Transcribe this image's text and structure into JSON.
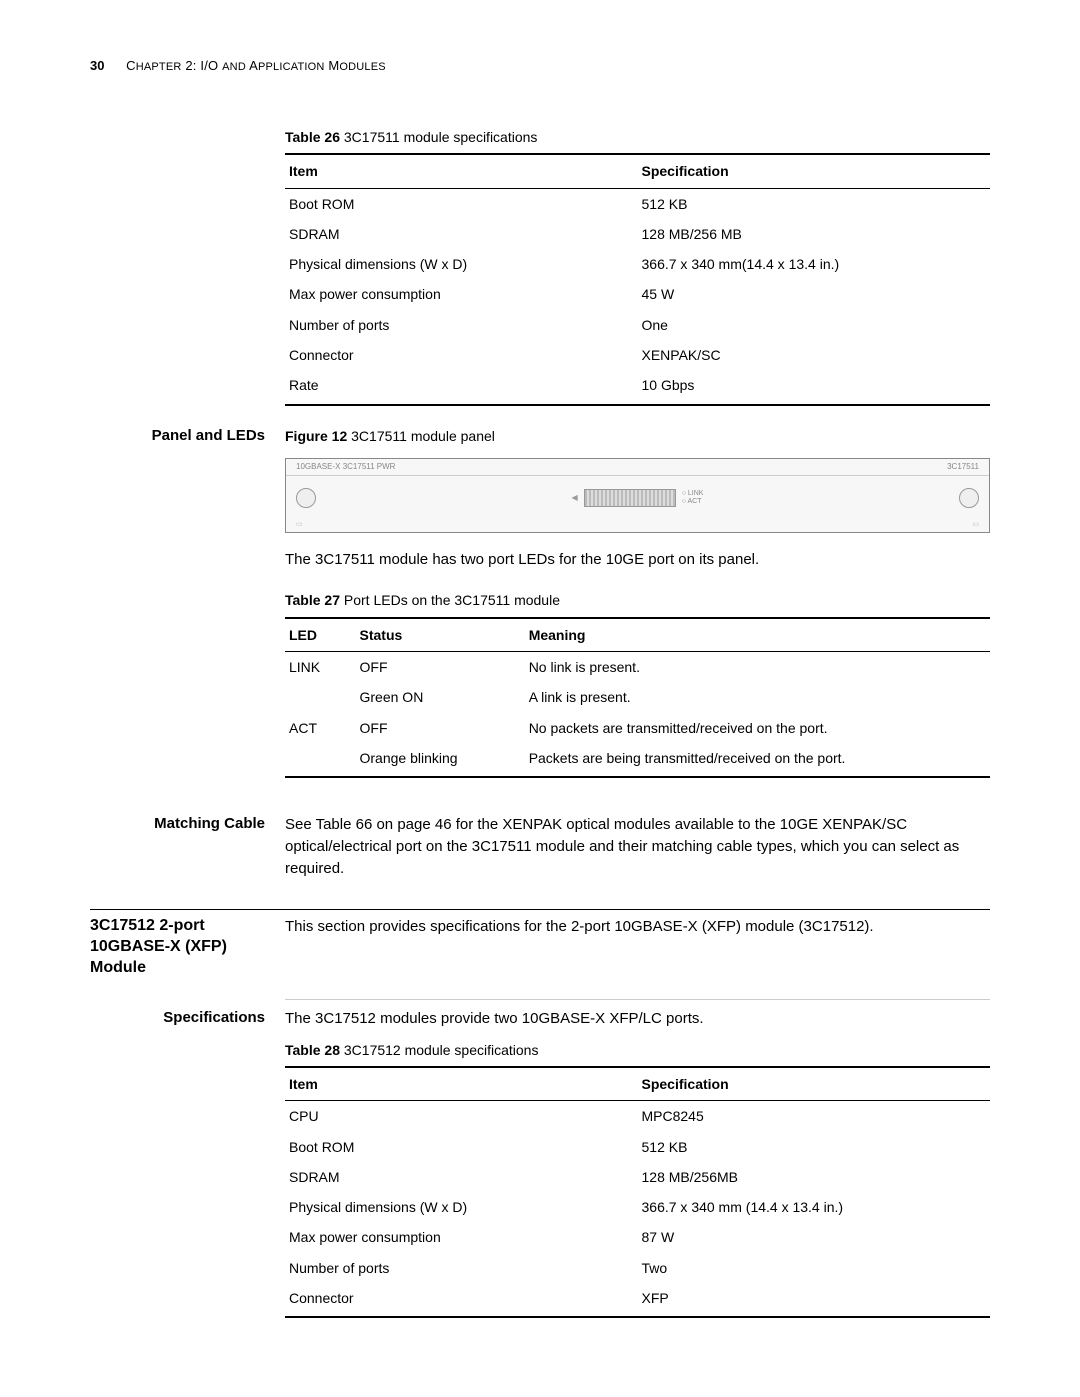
{
  "header": {
    "page_number": "30",
    "chapter_prefix": "C",
    "chapter_text_1": "HAPTER",
    "chapter_num": " 2: I/O ",
    "chapter_text_2": "AND",
    "chapter_text_3": " A",
    "chapter_text_4": "PPLICATION",
    "chapter_text_5": " M",
    "chapter_text_6": "ODULES"
  },
  "table26": {
    "caption_bold": "Table 26",
    "caption_rest": "   3C17511 module specifications",
    "head_item": "Item",
    "head_spec": "Specification",
    "rows": [
      {
        "item": "Boot ROM",
        "spec": "512 KB"
      },
      {
        "item": "SDRAM",
        "spec": "128 MB/256 MB"
      },
      {
        "item": "Physical dimensions (W x D)",
        "spec": "366.7 x 340 mm(14.4 x 13.4 in.)"
      },
      {
        "item": "Max power consumption",
        "spec": "45 W"
      },
      {
        "item": "Number of ports",
        "spec": "One"
      },
      {
        "item": "Connector",
        "spec": "XENPAK/SC"
      },
      {
        "item": "Rate",
        "spec": "10 Gbps"
      }
    ]
  },
  "panel": {
    "side_label": "Panel and LEDs",
    "fig_bold": "Figure 12",
    "fig_rest": "   3C17511 module panel",
    "strip_left": "10GBASE-X 3C17511 PWR",
    "strip_right": "3C17511",
    "led1": "LINK",
    "led2": "ACT",
    "desc": "The 3C17511 module has two port LEDs for the 10GE port on its panel."
  },
  "table27": {
    "caption_bold": "Table 27",
    "caption_rest": "   Port LEDs on the 3C17511 module",
    "head_led": "LED",
    "head_status": "Status",
    "head_meaning": "Meaning",
    "rows": [
      {
        "led": "LINK",
        "status": "OFF",
        "meaning": "No link is present."
      },
      {
        "led": "",
        "status": "Green ON",
        "meaning": "A link is present."
      },
      {
        "led": "ACT",
        "status": "OFF",
        "meaning": "No packets are transmitted/received on the port."
      },
      {
        "led": "",
        "status": "Orange blinking",
        "meaning": "Packets are being transmitted/received on the port."
      }
    ]
  },
  "matching": {
    "side_label": "Matching Cable",
    "text": "See Table 66 on page 46 for the XENPAK optical modules available to the 10GE XENPAK/SC optical/electrical port on the 3C17511 module and their matching cable types, which you can select as required."
  },
  "sec3c17512": {
    "side_label": "3C17512 2-port 10GBASE-X (XFP) Module",
    "text": "This section provides specifications for the 2-port 10GBASE-X (XFP) module (3C17512)."
  },
  "specs2": {
    "side_label": "Specifications",
    "intro": "The 3C17512 modules provide two 10GBASE-X XFP/LC ports."
  },
  "table28": {
    "caption_bold": "Table 28",
    "caption_rest": "   3C17512 module specifications",
    "head_item": "Item",
    "head_spec": "Specification",
    "rows": [
      {
        "item": "CPU",
        "spec": "MPC8245"
      },
      {
        "item": "Boot ROM",
        "spec": "512 KB"
      },
      {
        "item": "SDRAM",
        "spec": "128 MB/256MB"
      },
      {
        "item": "Physical dimensions (W x D)",
        "spec": "366.7 x 340 mm (14.4 x 13.4 in.)"
      },
      {
        "item": "Max power consumption",
        "spec": "87 W"
      },
      {
        "item": "Number of ports",
        "spec": "Two"
      },
      {
        "item": "Connector",
        "spec": "XFP"
      }
    ]
  }
}
